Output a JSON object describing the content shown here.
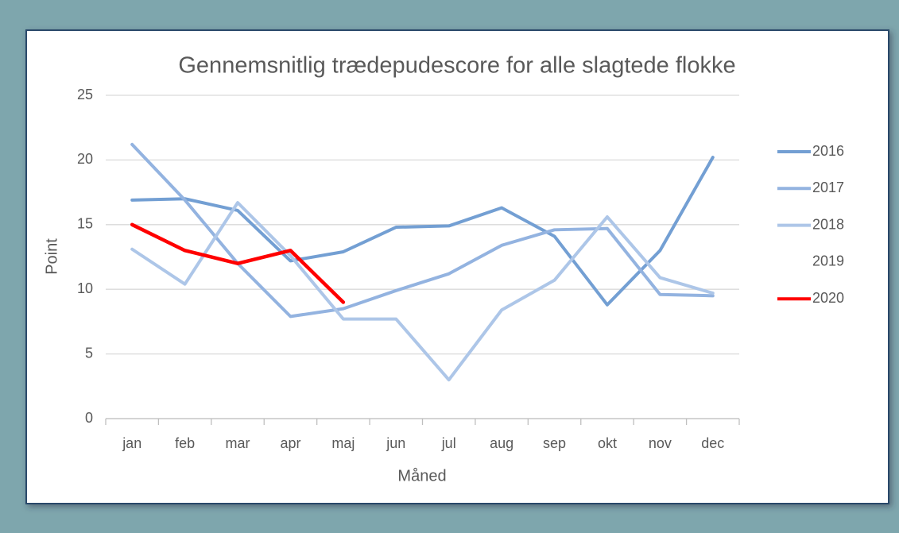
{
  "chart_data": {
    "type": "line",
    "title": "Gennemsnitlig trædepudescore for alle slagtede flokke",
    "x_label": "Måned",
    "y_label": "Point",
    "categories": [
      "jan",
      "feb",
      "mar",
      "apr",
      "maj",
      "jun",
      "jul",
      "aug",
      "sep",
      "okt",
      "nov",
      "dec"
    ],
    "series": [
      {
        "name": "2016",
        "color": "#739fd3",
        "values": [
          16.9,
          17.0,
          16.1,
          12.2,
          12.9,
          14.8,
          14.9,
          16.3,
          14.1,
          8.8,
          13.0,
          20.2
        ]
      },
      {
        "name": "2017",
        "color": "#93b3e0",
        "values": [
          21.2,
          16.9,
          12.0,
          7.9,
          8.5,
          9.9,
          11.2,
          13.4,
          14.6,
          14.7,
          9.6,
          9.5
        ]
      },
      {
        "name": "2018",
        "color": "#adc6e8",
        "values": [
          13.1,
          10.4,
          16.7,
          12.6,
          7.7,
          7.7,
          3.0,
          8.4,
          10.7,
          15.6,
          10.9,
          9.7
        ]
      },
      {
        "name": "2019",
        "values": [
          null,
          null,
          null,
          null,
          null,
          null,
          null,
          null,
          null,
          null,
          null,
          null
        ]
      },
      {
        "name": "2020",
        "color": "#ff0000",
        "values": [
          15,
          13,
          12,
          13,
          9,
          null,
          null,
          null,
          null,
          null,
          null,
          null
        ]
      }
    ],
    "ylim": [
      0,
      25
    ],
    "yticks": [
      0,
      5,
      10,
      15,
      20,
      25
    ],
    "grid": true,
    "legend": "right"
  }
}
